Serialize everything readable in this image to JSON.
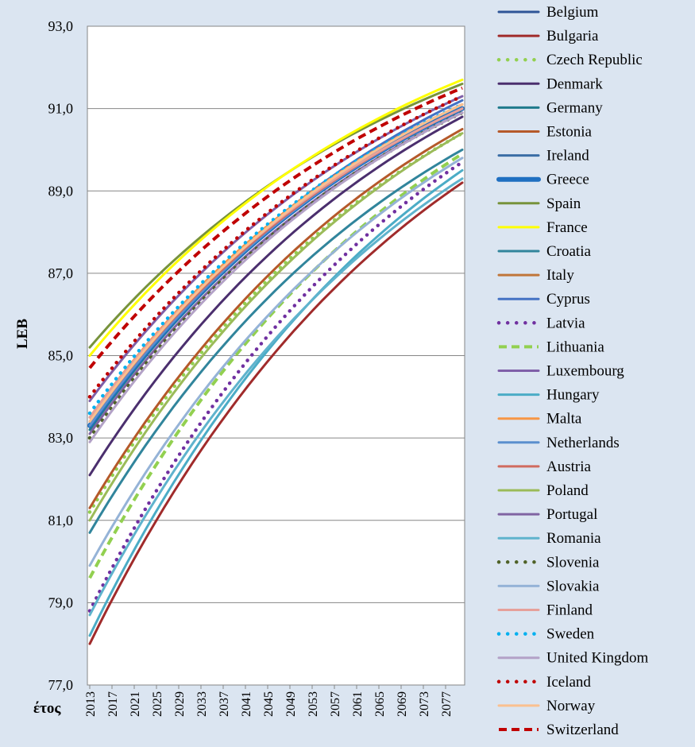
{
  "chart_data": {
    "type": "line",
    "title": "",
    "xlabel": "έτος",
    "ylabel": "LEB",
    "ylim": [
      77.0,
      93.0
    ],
    "y_ticks": [
      "77,0",
      "79,0",
      "81,0",
      "83,0",
      "85,0",
      "87,0",
      "89,0",
      "91,0",
      "93,0"
    ],
    "y_tick_values": [
      77,
      79,
      81,
      83,
      85,
      87,
      89,
      91,
      93
    ],
    "x_range": [
      2013,
      2080
    ],
    "x_ticks": [
      "2013",
      "2017",
      "2021",
      "2025",
      "2029",
      "2033",
      "2037",
      "2041",
      "2045",
      "2049",
      "2053",
      "2057",
      "2061",
      "2065",
      "2069",
      "2073",
      "2077"
    ],
    "grid": true,
    "legend_position": "right",
    "series": [
      {
        "name": "Belgium",
        "color": "#2f5597",
        "dash": "solid",
        "width": "normal",
        "values": [
          83.2,
          91.1
        ]
      },
      {
        "name": "Bulgaria",
        "color": "#a02b2b",
        "dash": "solid",
        "width": "normal",
        "values": [
          78.0,
          89.2
        ]
      },
      {
        "name": "Czech Republic",
        "color": "#92d050",
        "dash": "dot",
        "width": "normal",
        "values": [
          81.2,
          90.4
        ]
      },
      {
        "name": "Denmark",
        "color": "#4b2f6e",
        "dash": "solid",
        "width": "normal",
        "values": [
          82.1,
          90.8
        ]
      },
      {
        "name": "Germany",
        "color": "#1f7a8c",
        "dash": "solid",
        "width": "normal",
        "values": [
          83.2,
          91.0
        ]
      },
      {
        "name": "Estonia",
        "color": "#b5592a",
        "dash": "solid",
        "width": "normal",
        "values": [
          81.3,
          90.5
        ]
      },
      {
        "name": "Ireland",
        "color": "#3a6ea5",
        "dash": "solid",
        "width": "normal",
        "values": [
          83.4,
          91.0
        ]
      },
      {
        "name": "Greece",
        "color": "#1f6fc1",
        "dash": "solid",
        "width": "thick",
        "values": [
          83.3,
          91.0
        ]
      },
      {
        "name": "Spain",
        "color": "#77933c",
        "dash": "solid",
        "width": "normal",
        "values": [
          85.2,
          91.6
        ]
      },
      {
        "name": "France",
        "color": "#ffff00",
        "dash": "solid",
        "width": "normal",
        "values": [
          85.0,
          91.7
        ]
      },
      {
        "name": "Croatia",
        "color": "#31859c",
        "dash": "solid",
        "width": "normal",
        "values": [
          80.7,
          90.0
        ]
      },
      {
        "name": "Italy",
        "color": "#c0763a",
        "dash": "solid",
        "width": "normal",
        "values": [
          83.5,
          91.1
        ]
      },
      {
        "name": "Cyprus",
        "color": "#4472c4",
        "dash": "solid",
        "width": "normal",
        "values": [
          83.3,
          91.2
        ]
      },
      {
        "name": "Latvia",
        "color": "#7030a0",
        "dash": "dot",
        "width": "normal",
        "values": [
          78.8,
          89.7
        ]
      },
      {
        "name": "Lithuania",
        "color": "#92d050",
        "dash": "dash",
        "width": "normal",
        "values": [
          79.6,
          89.9
        ]
      },
      {
        "name": "Luxembourg",
        "color": "#7f5fa8",
        "dash": "solid",
        "width": "normal",
        "values": [
          83.9,
          91.3
        ]
      },
      {
        "name": "Hungary",
        "color": "#4bacc6",
        "dash": "solid",
        "width": "normal",
        "values": [
          78.2,
          89.5
        ]
      },
      {
        "name": "Malta",
        "color": "#f79646",
        "dash": "solid",
        "width": "normal",
        "values": [
          83.5,
          91.1
        ]
      },
      {
        "name": "Netherlands",
        "color": "#5b8fce",
        "dash": "solid",
        "width": "normal",
        "values": [
          83.3,
          91.0
        ]
      },
      {
        "name": "Austria",
        "color": "#d06b5f",
        "dash": "solid",
        "width": "normal",
        "values": [
          83.4,
          91.0
        ]
      },
      {
        "name": "Poland",
        "color": "#9bbb59",
        "dash": "solid",
        "width": "normal",
        "values": [
          81.0,
          90.4
        ]
      },
      {
        "name": "Portugal",
        "color": "#8064a2",
        "dash": "solid",
        "width": "normal",
        "values": [
          83.1,
          90.9
        ]
      },
      {
        "name": "Romania",
        "color": "#5fb3cd",
        "dash": "solid",
        "width": "normal",
        "values": [
          78.7,
          89.3
        ]
      },
      {
        "name": "Slovenia",
        "color": "#4f6228",
        "dash": "dot",
        "width": "normal",
        "values": [
          83.0,
          90.9
        ]
      },
      {
        "name": "Slovakia",
        "color": "#95b3d7",
        "dash": "solid",
        "width": "normal",
        "values": [
          79.9,
          89.8
        ]
      },
      {
        "name": "Finland",
        "color": "#e6a09a",
        "dash": "solid",
        "width": "normal",
        "values": [
          83.5,
          91.0
        ]
      },
      {
        "name": "Sweden",
        "color": "#00b0f0",
        "dash": "dot",
        "width": "normal",
        "values": [
          83.6,
          91.1
        ]
      },
      {
        "name": "United Kingdom",
        "color": "#b3a2c7",
        "dash": "solid",
        "width": "normal",
        "values": [
          82.9,
          90.9
        ]
      },
      {
        "name": "Iceland",
        "color": "#c00000",
        "dash": "dot",
        "width": "normal",
        "values": [
          84.0,
          91.3
        ]
      },
      {
        "name": "Norway",
        "color": "#fac090",
        "dash": "solid",
        "width": "normal",
        "values": [
          83.4,
          91.1
        ]
      },
      {
        "name": "Switzerland",
        "color": "#c00000",
        "dash": "dash",
        "width": "normal",
        "values": [
          84.7,
          91.5
        ]
      }
    ]
  }
}
